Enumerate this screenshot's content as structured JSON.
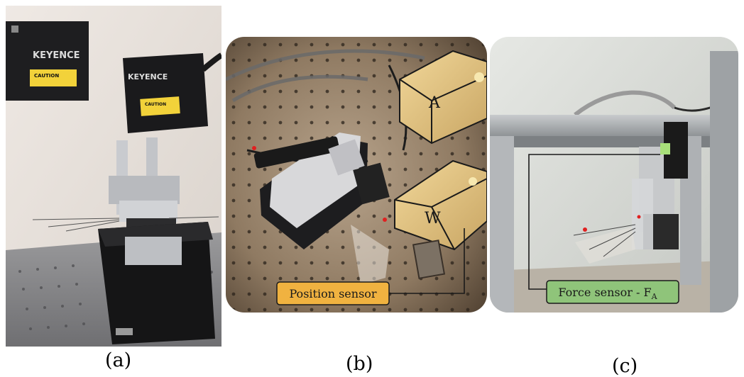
{
  "figure": {
    "panel_a": {
      "caption": "(a)",
      "sensor_brand_1": "KEYENCE",
      "sensor_brand_2": "KEYENCE",
      "caution_label_1": "CAUTION",
      "caution_label_2": "CAUTION"
    },
    "panel_b": {
      "caption": "(b)",
      "label_a": "A",
      "label_w": "W",
      "callout": "Position sensor",
      "callout_color": "#f0b240"
    },
    "panel_c": {
      "caption": "(c)",
      "callout": "Force sensor - F",
      "callout_subscript": "A",
      "callout_color": "#8fc47a"
    }
  }
}
